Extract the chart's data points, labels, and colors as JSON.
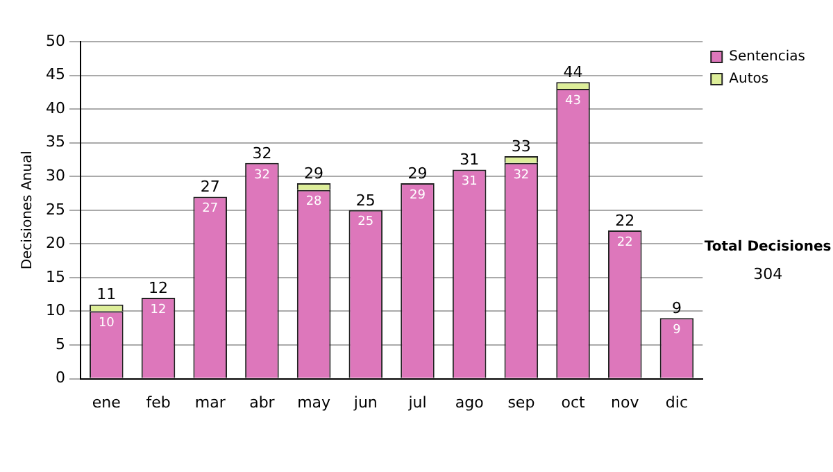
{
  "chart_data": {
    "type": "bar",
    "stacked": true,
    "ylabel": "Decisiones Anual",
    "categories": [
      "ene",
      "feb",
      "mar",
      "abr",
      "may",
      "jun",
      "jul",
      "ago",
      "sep",
      "oct",
      "nov",
      "dic"
    ],
    "series": [
      {
        "name": "Sentencias",
        "color": "#dd77bb",
        "values": [
          10,
          12,
          27,
          32,
          28,
          25,
          29,
          31,
          32,
          43,
          22,
          9
        ],
        "value_labels": [
          "10",
          "12",
          "27",
          "32",
          "28",
          "25",
          "29",
          "31",
          "32",
          "43",
          "22",
          "9"
        ]
      },
      {
        "name": "Autos",
        "color": "#ddee99",
        "values": [
          1,
          0,
          0,
          0,
          1,
          0,
          0,
          0,
          1,
          1,
          0,
          0
        ]
      }
    ],
    "totals": [
      "11",
      "12",
      "27",
      "32",
      "29",
      "25",
      "29",
      "31",
      "33",
      "44",
      "22",
      "9"
    ],
    "ylim": [
      0,
      50
    ],
    "yticks": [
      0,
      5,
      10,
      15,
      20,
      25,
      30,
      35,
      40,
      45,
      50
    ],
    "grid": "y",
    "legend": "right",
    "annotations": [
      "Total Decisiones",
      "304"
    ]
  }
}
